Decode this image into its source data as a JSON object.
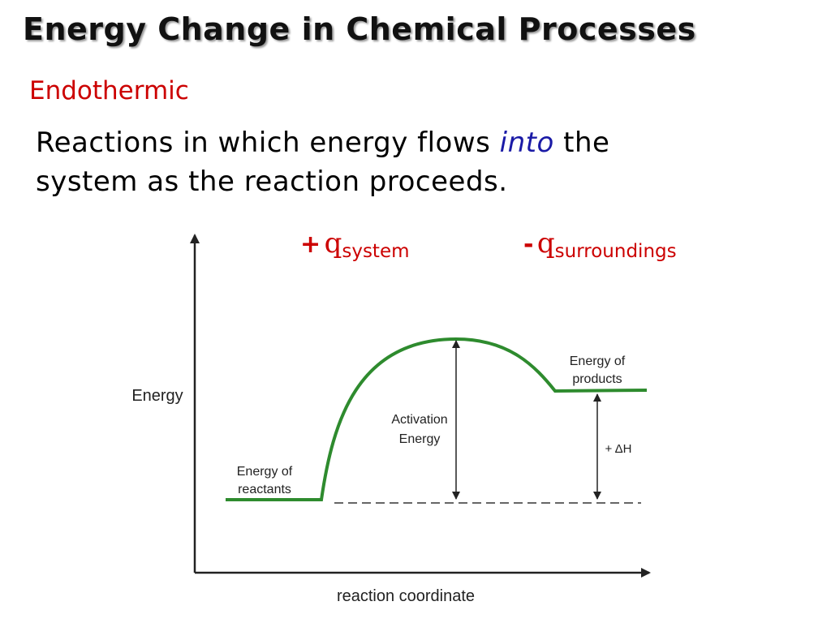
{
  "title": "Energy Change in Chemical Processes",
  "subtitle": "Endothermic",
  "definition": {
    "before": "Reactions in which energy flows ",
    "emphasis": "into",
    "after": " the system as the reaction proceeds."
  },
  "q_system": {
    "sign": "+",
    "symbol": "q",
    "subscript": "system"
  },
  "q_surroundings": {
    "sign": "-",
    "symbol": "q",
    "subscript": "surroundings"
  },
  "diagram": {
    "y_axis_label": "Energy",
    "x_axis_label": "reaction coordinate",
    "reactants_label": [
      "Energy of",
      "reactants"
    ],
    "products_label": [
      "Energy of",
      "products"
    ],
    "activation_label": [
      "Activation",
      "Energy"
    ],
    "delta_h_label": "+ ΔH",
    "curve_color": "#2e8b2e"
  }
}
